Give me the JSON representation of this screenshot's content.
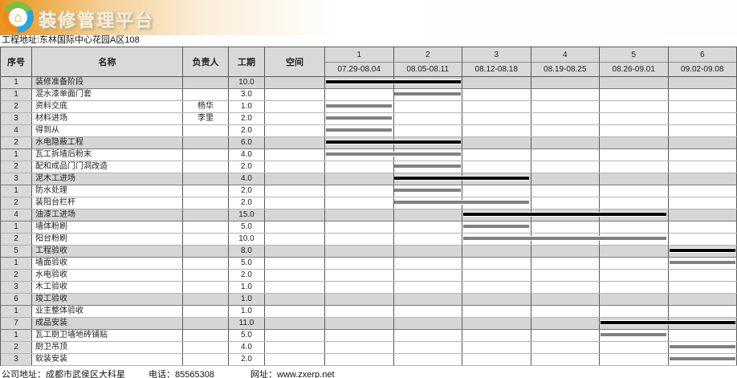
{
  "header": {
    "logo_title": "装修管理平台",
    "project_address": "工程地址:东林国际中心花园A区108"
  },
  "table": {
    "columns": {
      "seq": "序号",
      "name": "名称",
      "owner": "负责人",
      "duration": "工期",
      "space": "空间"
    },
    "weeks": [
      {
        "num": "1",
        "range": "07.29-08.04"
      },
      {
        "num": "2",
        "range": "08.05-08.11"
      },
      {
        "num": "3",
        "range": "08.12-08.18"
      },
      {
        "num": "4",
        "range": "08.19-08.25"
      },
      {
        "num": "5",
        "range": "08.26-09.01"
      },
      {
        "num": "6",
        "range": "09.02-09.08"
      }
    ],
    "rows": [
      {
        "seq": "1",
        "name": "装修准备阶段",
        "owner": "",
        "duration": "10.0",
        "space": "",
        "parent": true,
        "bar": {
          "start": 1,
          "end": 2
        }
      },
      {
        "seq": "1",
        "name": "混水漆单面门套",
        "owner": "",
        "duration": "3.0",
        "space": "",
        "parent": false,
        "bar": {
          "start": 2,
          "end": 2
        }
      },
      {
        "seq": "2",
        "name": "资料交底",
        "owner": "杨华",
        "duration": "1.0",
        "space": "",
        "parent": false,
        "bar": {
          "start": 1,
          "end": 1
        }
      },
      {
        "seq": "3",
        "name": "材料进场",
        "owner": "李里",
        "duration": "2.0",
        "space": "",
        "parent": false,
        "bar": {
          "start": 1,
          "end": 1
        }
      },
      {
        "seq": "4",
        "name": "得到从",
        "owner": "",
        "duration": "2.0",
        "space": "",
        "parent": false,
        "bar": {
          "start": 1,
          "end": 1
        }
      },
      {
        "seq": "2",
        "name": "水电隐蔽工程",
        "owner": "",
        "duration": "6.0",
        "space": "",
        "parent": true,
        "bar": {
          "start": 1,
          "end": 2
        }
      },
      {
        "seq": "1",
        "name": "瓦工拆墙后粉末",
        "owner": "",
        "duration": "4.0",
        "space": "",
        "parent": false,
        "bar": {
          "start": 1,
          "end": 2
        }
      },
      {
        "seq": "2",
        "name": "配和成品门门洞改造",
        "owner": "",
        "duration": "2.0",
        "space": "",
        "parent": false,
        "bar": {
          "start": 2,
          "end": 2
        }
      },
      {
        "seq": "3",
        "name": "泥木工进场",
        "owner": "",
        "duration": "4.0",
        "space": "",
        "parent": true,
        "bar": {
          "start": 2,
          "end": 3
        }
      },
      {
        "seq": "1",
        "name": "防水处理",
        "owner": "",
        "duration": "2.0",
        "space": "",
        "parent": false,
        "bar": {
          "start": 2,
          "end": 2
        }
      },
      {
        "seq": "2",
        "name": "装阳台栏杆",
        "owner": "",
        "duration": "2.0",
        "space": "",
        "parent": false,
        "bar": {
          "start": 2,
          "end": 3
        }
      },
      {
        "seq": "4",
        "name": "油漆工进场",
        "owner": "",
        "duration": "15.0",
        "space": "",
        "parent": true,
        "bar": {
          "start": 3,
          "end": 5
        }
      },
      {
        "seq": "1",
        "name": "墙体粉刷",
        "owner": "",
        "duration": "5.0",
        "space": "",
        "parent": false,
        "bar": {
          "start": 3,
          "end": 3
        }
      },
      {
        "seq": "2",
        "name": "阳台粉刷",
        "owner": "",
        "duration": "10.0",
        "space": "",
        "parent": false,
        "bar": {
          "start": 3,
          "end": 5
        }
      },
      {
        "seq": "5",
        "name": "工程验收",
        "owner": "",
        "duration": "8.0",
        "space": "",
        "parent": true,
        "bar": {
          "start": 6,
          "end": 6
        }
      },
      {
        "seq": "1",
        "name": "墙面验收",
        "owner": "",
        "duration": "5.0",
        "space": "",
        "parent": false,
        "bar": {
          "start": 6,
          "end": 6
        }
      },
      {
        "seq": "2",
        "name": "水电验收",
        "owner": "",
        "duration": "2.0",
        "space": "",
        "parent": false,
        "bar": null
      },
      {
        "seq": "3",
        "name": "木工验收",
        "owner": "",
        "duration": "1.0",
        "space": "",
        "parent": false,
        "bar": null
      },
      {
        "seq": "6",
        "name": "竣工验收",
        "owner": "",
        "duration": "1.0",
        "space": "",
        "parent": true,
        "bar": null
      },
      {
        "seq": "1",
        "name": "业主整体验收",
        "owner": "",
        "duration": "1.0",
        "space": "",
        "parent": false,
        "bar": null
      },
      {
        "seq": "7",
        "name": "成品安装",
        "owner": "",
        "duration": "11.0",
        "space": "",
        "parent": true,
        "bar": {
          "start": 5,
          "end": 6
        }
      },
      {
        "seq": "1",
        "name": "瓦工厨卫墙地砖铺贴",
        "owner": "",
        "duration": "5.0",
        "space": "",
        "parent": false,
        "bar": {
          "start": 5,
          "end": 5
        }
      },
      {
        "seq": "2",
        "name": "厨卫吊顶",
        "owner": "",
        "duration": "4.0",
        "space": "",
        "parent": false,
        "bar": {
          "start": 6,
          "end": 6
        }
      },
      {
        "seq": "3",
        "name": "软装安装",
        "owner": "",
        "duration": "2.0",
        "space": "",
        "parent": false,
        "bar": {
          "start": 6,
          "end": 6
        }
      }
    ]
  },
  "footer": {
    "company": "公司地址：成都市武侯区大科星",
    "phone": "电话：85565308",
    "website": "网址：www.zxerp.net"
  },
  "colors": {
    "banner_orange": "#e8941e",
    "bar_parent": "#000000",
    "bar_child": "#808080",
    "grid_dark": "#595959",
    "parent_row_bg": "#d6d6d6"
  }
}
